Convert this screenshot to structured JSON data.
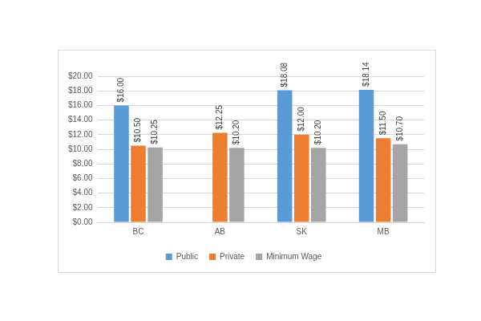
{
  "chart_data": {
    "type": "bar",
    "categories": [
      "BC",
      "AB",
      "SK",
      "MB"
    ],
    "series": [
      {
        "name": "Public",
        "color": "#5b9bd5",
        "values": [
          16.0,
          null,
          18.08,
          18.14
        ],
        "value_labels": [
          "$16.00",
          null,
          "$18.08",
          "$18.14"
        ]
      },
      {
        "name": "Private",
        "color": "#ed7d31",
        "values": [
          10.5,
          12.25,
          12.0,
          11.5
        ],
        "value_labels": [
          "$10.50",
          "$12.25",
          "$12.00",
          "$11.50"
        ]
      },
      {
        "name": "Minimum Wage",
        "color": "#a5a5a5",
        "values": [
          10.25,
          10.2,
          10.2,
          10.7
        ],
        "value_labels": [
          "$10.25",
          "$10.20",
          "$10.20",
          "$10.70"
        ]
      }
    ],
    "ylim": [
      0,
      20
    ],
    "yticks": [
      {
        "value": 0,
        "label": "$0.00"
      },
      {
        "value": 2,
        "label": "$2.00"
      },
      {
        "value": 4,
        "label": "$4.00"
      },
      {
        "value": 6,
        "label": "$6.00"
      },
      {
        "value": 8,
        "label": "$8.00"
      },
      {
        "value": 10,
        "label": "$10.00"
      },
      {
        "value": 12,
        "label": "$12.00"
      },
      {
        "value": 14,
        "label": "$14.00"
      },
      {
        "value": 16,
        "label": "$16.00"
      },
      {
        "value": 18,
        "label": "$18.00"
      },
      {
        "value": 20,
        "label": "$20.00"
      }
    ],
    "grid": true,
    "legend": "bottom",
    "data_labels": true
  }
}
